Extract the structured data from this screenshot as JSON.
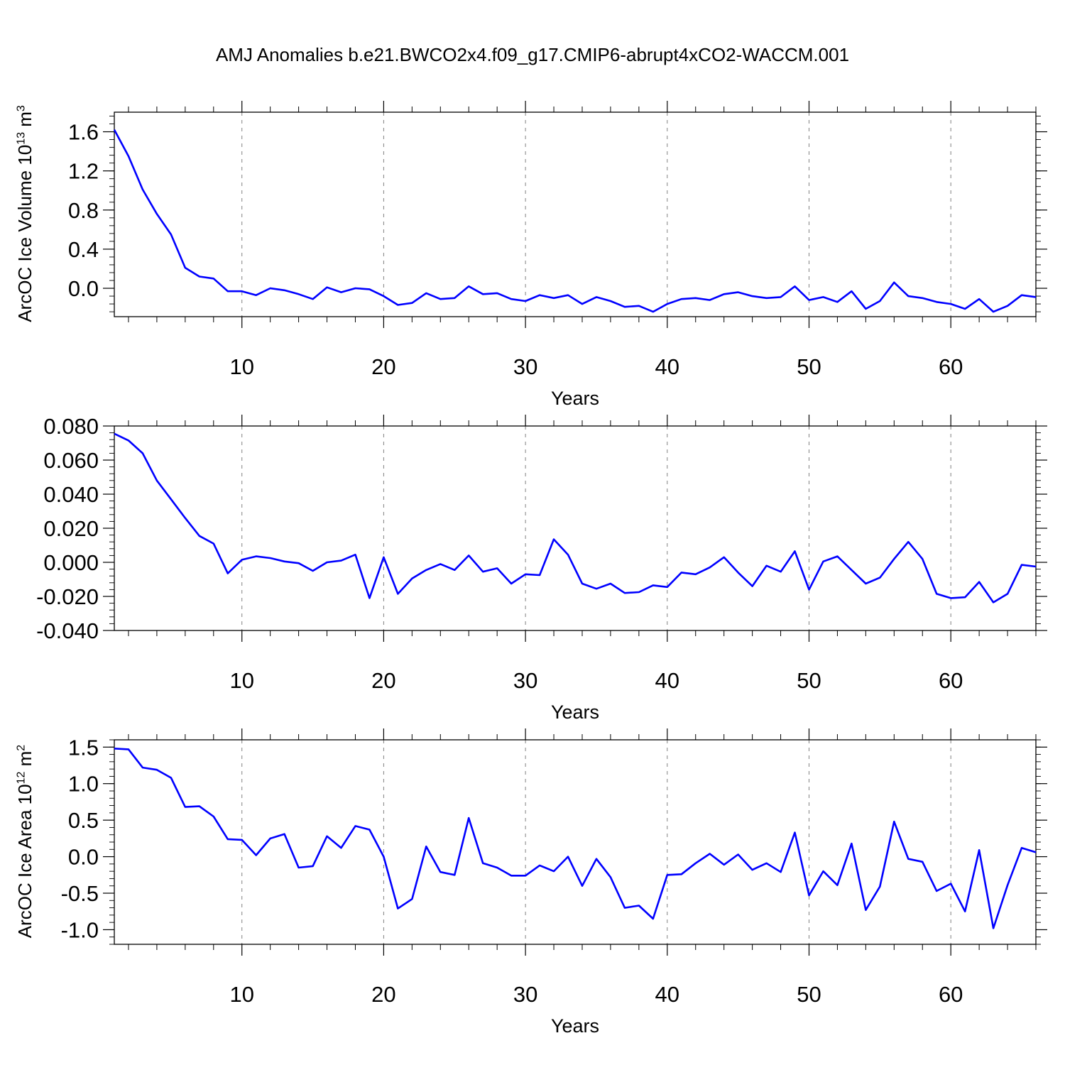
{
  "figure": {
    "title": "AMJ Anomalies b.e21.BWCO2x4.f09_g17.CMIP6-abrupt4xCO2-WACCM.001",
    "line_color": "#0000ff",
    "grid_color": "#808080"
  },
  "chart_data": [
    {
      "type": "line",
      "title": "",
      "xlabel": "Years",
      "ylabel_text": "ArcOC Ice Volume 10",
      "ylabel_exp": "13",
      "ylabel_unit": " m",
      "ylabel_unit_exp": "3",
      "xlim": [
        1,
        66
      ],
      "ylim": [
        -0.29,
        1.8
      ],
      "x_ticks": [
        10,
        20,
        30,
        40,
        50,
        60
      ],
      "x_tick_labels": [
        "10",
        "20",
        "30",
        "40",
        "50",
        "60"
      ],
      "y_ticks": [
        0.0,
        0.4,
        0.8,
        1.2,
        1.6
      ],
      "y_tick_labels": [
        "0.0",
        "0.4",
        "0.8",
        "1.2",
        "1.6"
      ],
      "y_minor_step": 0.08,
      "grid": "x-dashed",
      "series": [
        {
          "name": "ArcOC Ice Volume",
          "x": [
            1,
            2,
            3,
            4,
            5,
            6,
            7,
            8,
            9,
            10,
            11,
            12,
            13,
            14,
            15,
            16,
            17,
            18,
            19,
            20,
            21,
            22,
            23,
            24,
            25,
            26,
            27,
            28,
            29,
            30,
            31,
            32,
            33,
            34,
            35,
            36,
            37,
            38,
            39,
            40,
            41,
            42,
            43,
            44,
            45,
            46,
            47,
            48,
            49,
            50,
            51,
            52,
            53,
            54,
            55,
            56,
            57,
            58,
            59,
            60,
            61,
            62,
            63,
            64,
            65,
            66
          ],
          "values": [
            1.62,
            1.35,
            1.01,
            0.76,
            0.55,
            0.21,
            0.12,
            0.1,
            -0.03,
            -0.03,
            -0.07,
            0.0,
            -0.02,
            -0.06,
            -0.11,
            0.01,
            -0.04,
            0.0,
            -0.01,
            -0.08,
            -0.17,
            -0.15,
            -0.05,
            -0.11,
            -0.1,
            0.02,
            -0.06,
            -0.05,
            -0.11,
            -0.13,
            -0.07,
            -0.1,
            -0.07,
            -0.16,
            -0.09,
            -0.13,
            -0.19,
            -0.18,
            -0.24,
            -0.16,
            -0.11,
            -0.1,
            -0.12,
            -0.06,
            -0.04,
            -0.08,
            -0.1,
            -0.09,
            0.02,
            -0.12,
            -0.09,
            -0.14,
            -0.03,
            -0.21,
            -0.13,
            0.06,
            -0.08,
            -0.1,
            -0.14,
            -0.16,
            -0.21,
            -0.11,
            -0.24,
            -0.18,
            -0.07,
            -0.09
          ]
        }
      ]
    },
    {
      "type": "line",
      "title": "",
      "xlabel": "Years",
      "ylabel_text": "",
      "ylabel_exp": "",
      "ylabel_unit": "",
      "ylabel_unit_exp": "",
      "xlim": [
        1,
        66
      ],
      "ylim": [
        -0.04,
        0.08
      ],
      "x_ticks": [
        10,
        20,
        30,
        40,
        50,
        60
      ],
      "x_tick_labels": [
        "10",
        "20",
        "30",
        "40",
        "50",
        "60"
      ],
      "y_ticks": [
        -0.04,
        -0.02,
        0.0,
        0.02,
        0.04,
        0.06,
        0.08
      ],
      "y_tick_labels": [
        "-0.040",
        "-0.020",
        "0.000",
        "0.020",
        "0.040",
        "0.060",
        "0.080"
      ],
      "y_minor_step": 0.004,
      "grid": "x-dashed",
      "series": [
        {
          "name": "series-2",
          "x": [
            1,
            2,
            3,
            4,
            5,
            6,
            7,
            8,
            9,
            10,
            11,
            12,
            13,
            14,
            15,
            16,
            17,
            18,
            19,
            20,
            21,
            22,
            23,
            24,
            25,
            26,
            27,
            28,
            29,
            30,
            31,
            32,
            33,
            34,
            35,
            36,
            37,
            38,
            39,
            40,
            41,
            42,
            43,
            44,
            45,
            46,
            47,
            48,
            49,
            50,
            51,
            52,
            53,
            54,
            55,
            56,
            57,
            58,
            59,
            60,
            61,
            62,
            63,
            64,
            65,
            66
          ],
          "values": [
            0.0755,
            0.0715,
            0.064,
            0.048,
            0.037,
            0.026,
            0.0155,
            0.011,
            -0.0065,
            0.0015,
            0.0035,
            0.0025,
            0.0005,
            -0.0005,
            -0.005,
            0.0,
            0.001,
            0.0045,
            -0.021,
            0.003,
            -0.0185,
            -0.0095,
            -0.0045,
            -0.001,
            -0.0045,
            0.004,
            -0.0055,
            -0.0035,
            -0.0125,
            -0.007,
            -0.0075,
            0.0135,
            0.0045,
            -0.0125,
            -0.0155,
            -0.0125,
            -0.018,
            -0.0175,
            -0.0135,
            -0.0145,
            -0.006,
            -0.007,
            -0.003,
            0.003,
            -0.006,
            -0.014,
            -0.002,
            -0.0055,
            0.0065,
            -0.016,
            0.0005,
            0.0035,
            -0.0045,
            -0.0125,
            -0.009,
            0.002,
            0.012,
            0.002,
            -0.0185,
            -0.021,
            -0.0205,
            -0.0115,
            -0.0235,
            -0.0185,
            -0.0015,
            -0.0025
          ]
        }
      ]
    },
    {
      "type": "line",
      "title": "",
      "xlabel": "Years",
      "ylabel_text": "ArcOC Ice Area 10",
      "ylabel_exp": "12",
      "ylabel_unit": " m",
      "ylabel_unit_exp": "2",
      "xlim": [
        1,
        66
      ],
      "ylim": [
        -1.2,
        1.6
      ],
      "x_ticks": [
        10,
        20,
        30,
        40,
        50,
        60
      ],
      "x_tick_labels": [
        "10",
        "20",
        "30",
        "40",
        "50",
        "60"
      ],
      "y_ticks": [
        -1.0,
        -0.5,
        0.0,
        0.5,
        1.0,
        1.5
      ],
      "y_tick_labels": [
        "-1.0",
        "-0.5",
        "0.0",
        "0.5",
        "1.0",
        "1.5"
      ],
      "y_minor_step": 0.1,
      "grid": "x-dashed",
      "series": [
        {
          "name": "ArcOC Ice Area",
          "x": [
            1,
            2,
            3,
            4,
            5,
            6,
            7,
            8,
            9,
            10,
            11,
            12,
            13,
            14,
            15,
            16,
            17,
            18,
            19,
            20,
            21,
            22,
            23,
            24,
            25,
            26,
            27,
            28,
            29,
            30,
            31,
            32,
            33,
            34,
            35,
            36,
            37,
            38,
            39,
            40,
            41,
            42,
            43,
            44,
            45,
            46,
            47,
            48,
            49,
            50,
            51,
            52,
            53,
            54,
            55,
            56,
            57,
            58,
            59,
            60,
            61,
            62,
            63,
            64,
            65,
            66
          ],
          "values": [
            1.48,
            1.47,
            1.22,
            1.19,
            1.08,
            0.68,
            0.69,
            0.55,
            0.24,
            0.23,
            0.02,
            0.25,
            0.31,
            -0.15,
            -0.13,
            0.28,
            0.12,
            0.42,
            0.37,
            0.0,
            -0.71,
            -0.58,
            0.14,
            -0.21,
            -0.25,
            0.53,
            -0.09,
            -0.15,
            -0.26,
            -0.26,
            -0.12,
            -0.2,
            0.0,
            -0.4,
            -0.03,
            -0.28,
            -0.7,
            -0.67,
            -0.85,
            -0.25,
            -0.24,
            -0.09,
            0.04,
            -0.11,
            0.03,
            -0.18,
            -0.09,
            -0.21,
            0.33,
            -0.53,
            -0.2,
            -0.39,
            0.18,
            -0.73,
            -0.41,
            0.48,
            -0.03,
            -0.07,
            -0.47,
            -0.37,
            -0.75,
            0.09,
            -0.98,
            -0.39,
            0.12,
            0.06
          ]
        }
      ]
    }
  ]
}
